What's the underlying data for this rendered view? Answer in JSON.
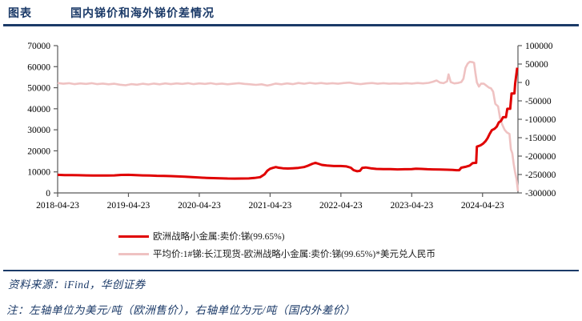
{
  "header": {
    "figure_label": "图表",
    "title": "国内锑价和海外锑价差情况"
  },
  "footer": {
    "source": "资料来源：iFind，华创证券",
    "note": "注：左轴单位为美元/吨（欧洲售价），右轴单位为元/吨（国内外差价）"
  },
  "colors": {
    "accent_navy": "#1b3a68",
    "series_red": "#e00000",
    "series_pink": "#efc2c2",
    "axis_line": "#595959",
    "tick_text": "#000000"
  },
  "chart_data": {
    "type": "line",
    "title": "国内锑价和海外锑价差情况",
    "grid": false,
    "legend_position": "bottom",
    "x_axis": {
      "tick_labels": [
        "2018-04-23",
        "2019-04-23",
        "2020-04-23",
        "2021-04-23",
        "2022-04-23",
        "2023-04-23",
        "2024-04-23"
      ],
      "tick_t": [
        0,
        1,
        2,
        3,
        4,
        5,
        6
      ],
      "t_range": [
        0,
        6.5
      ]
    },
    "left_axis": {
      "unit": "美元/吨",
      "range": [
        0,
        70000
      ],
      "tick_labels": [
        "0",
        "10000",
        "20000",
        "30000",
        "40000",
        "50000",
        "60000",
        "70000"
      ],
      "tick_values": [
        0,
        10000,
        20000,
        30000,
        40000,
        50000,
        60000,
        70000
      ]
    },
    "right_axis": {
      "unit": "元/吨",
      "range": [
        -300000,
        100000
      ],
      "tick_labels": [
        "-300000",
        "-250000",
        "-200000",
        "-150000",
        "-100000",
        "-50000",
        "0",
        "50000",
        "100000"
      ],
      "tick_values": [
        -300000,
        -250000,
        -200000,
        -150000,
        -100000,
        -50000,
        0,
        50000,
        100000
      ]
    },
    "legend": [
      {
        "label": "欧洲战略小金属:卖价:锑(99.65%)"
      },
      {
        "label": "平均价:1#锑:长江现货-欧洲战略小金属:卖价:锑(99.65%)*美元兑人民币"
      }
    ],
    "series": [
      {
        "name": "平均价:1#锑:长江现货-欧洲战略小金属:卖价:锑(99.65%)*美元兑人民币",
        "axis": "right",
        "color": "#efc2c2",
        "width": 2.6,
        "points": [
          [
            0,
            -1500
          ],
          [
            0.08,
            -3500
          ],
          [
            0.16,
            -2000
          ],
          [
            0.24,
            -4500
          ],
          [
            0.32,
            -2500
          ],
          [
            0.4,
            -4000
          ],
          [
            0.48,
            -2000
          ],
          [
            0.56,
            -4500
          ],
          [
            0.64,
            -3000
          ],
          [
            0.72,
            -5000
          ],
          [
            0.8,
            -3500
          ],
          [
            0.88,
            -6000
          ],
          [
            0.96,
            -7500
          ],
          [
            1.04,
            -4500
          ],
          [
            1.12,
            -6000
          ],
          [
            1.2,
            -3500
          ],
          [
            1.28,
            -5500
          ],
          [
            1.36,
            -3000
          ],
          [
            1.44,
            -5000
          ],
          [
            1.52,
            -2500
          ],
          [
            1.6,
            -4500
          ],
          [
            1.68,
            -2500
          ],
          [
            1.76,
            -4000
          ],
          [
            1.84,
            -2000
          ],
          [
            1.92,
            -4500
          ],
          [
            2.0,
            -2500
          ],
          [
            2.08,
            -4000
          ],
          [
            2.16,
            -2000
          ],
          [
            2.24,
            -4500
          ],
          [
            2.32,
            -3000
          ],
          [
            2.4,
            -5000
          ],
          [
            2.48,
            -3500
          ],
          [
            2.56,
            -2000
          ],
          [
            2.64,
            -4000
          ],
          [
            2.72,
            -5000
          ],
          [
            2.8,
            -6500
          ],
          [
            2.88,
            -5000
          ],
          [
            2.96,
            -8500
          ],
          [
            3.02,
            -6000
          ],
          [
            3.08,
            -3000
          ],
          [
            3.16,
            -5000
          ],
          [
            3.24,
            -2500
          ],
          [
            3.32,
            -4500
          ],
          [
            3.4,
            -1500
          ],
          [
            3.48,
            -3500
          ],
          [
            3.56,
            -1000
          ],
          [
            3.64,
            -3000
          ],
          [
            3.72,
            -1500
          ],
          [
            3.8,
            -3500
          ],
          [
            3.88,
            -2000
          ],
          [
            3.96,
            -3500
          ],
          [
            4.04,
            -1500
          ],
          [
            4.12,
            -500
          ],
          [
            4.2,
            -3000
          ],
          [
            4.28,
            -4500
          ],
          [
            4.36,
            -2500
          ],
          [
            4.44,
            -1500
          ],
          [
            4.52,
            -3500
          ],
          [
            4.6,
            -2000
          ],
          [
            4.68,
            -3500
          ],
          [
            4.76,
            -2500
          ],
          [
            4.84,
            -3500
          ],
          [
            4.92,
            -2000
          ],
          [
            5.0,
            -3000
          ],
          [
            5.08,
            -1500
          ],
          [
            5.16,
            -2500
          ],
          [
            5.24,
            -1000
          ],
          [
            5.3,
            2000
          ],
          [
            5.35,
            5500
          ],
          [
            5.4,
            -500
          ],
          [
            5.45,
            -2000
          ],
          [
            5.5,
            3000
          ],
          [
            5.52,
            22000
          ],
          [
            5.55,
            1000
          ],
          [
            5.6,
            -2500
          ],
          [
            5.65,
            -1500
          ],
          [
            5.7,
            1000
          ],
          [
            5.73,
            10000
          ],
          [
            5.76,
            40000
          ],
          [
            5.79,
            51000
          ],
          [
            5.82,
            56000
          ],
          [
            5.86,
            55000
          ],
          [
            5.88,
            53000
          ],
          [
            5.9,
            25000
          ],
          [
            5.92,
            0
          ],
          [
            5.95,
            -11000
          ],
          [
            5.98,
            -3000
          ],
          [
            6.02,
            -3500
          ],
          [
            6.05,
            -8000
          ],
          [
            6.09,
            -14000
          ],
          [
            6.12,
            -16000
          ],
          [
            6.15,
            -25000
          ],
          [
            6.18,
            -58000
          ],
          [
            6.22,
            -65000
          ],
          [
            6.25,
            -100000
          ],
          [
            6.28,
            -115000
          ],
          [
            6.31,
            -128000
          ],
          [
            6.34,
            -135000
          ],
          [
            6.38,
            -140000
          ],
          [
            6.4,
            -182000
          ],
          [
            6.42,
            -192000
          ],
          [
            6.44,
            -222000
          ],
          [
            6.46,
            -245000
          ],
          [
            6.48,
            -262000
          ],
          [
            6.5,
            -295000
          ]
        ]
      },
      {
        "name": "欧洲战略小金属:卖价:锑(99.65%)",
        "axis": "left",
        "color": "#e00000",
        "width": 3,
        "points": [
          [
            0,
            8600
          ],
          [
            0.1,
            8500
          ],
          [
            0.2,
            8450
          ],
          [
            0.3,
            8400
          ],
          [
            0.4,
            8350
          ],
          [
            0.5,
            8300
          ],
          [
            0.6,
            8250
          ],
          [
            0.7,
            8300
          ],
          [
            0.8,
            8350
          ],
          [
            0.9,
            8550
          ],
          [
            1.0,
            8600
          ],
          [
            1.1,
            8450
          ],
          [
            1.2,
            8350
          ],
          [
            1.3,
            8250
          ],
          [
            1.4,
            8150
          ],
          [
            1.5,
            8100
          ],
          [
            1.6,
            8000
          ],
          [
            1.7,
            7850
          ],
          [
            1.8,
            7700
          ],
          [
            1.9,
            7500
          ],
          [
            2.0,
            7300
          ],
          [
            2.1,
            7150
          ],
          [
            2.2,
            7050
          ],
          [
            2.3,
            6950
          ],
          [
            2.4,
            6850
          ],
          [
            2.5,
            6800
          ],
          [
            2.6,
            6850
          ],
          [
            2.7,
            6900
          ],
          [
            2.78,
            7100
          ],
          [
            2.86,
            7500
          ],
          [
            2.92,
            8800
          ],
          [
            2.96,
            10500
          ],
          [
            3.0,
            11500
          ],
          [
            3.04,
            11900
          ],
          [
            3.08,
            12300
          ],
          [
            3.12,
            12000
          ],
          [
            3.18,
            11700
          ],
          [
            3.25,
            11600
          ],
          [
            3.32,
            11700
          ],
          [
            3.4,
            11900
          ],
          [
            3.48,
            12300
          ],
          [
            3.54,
            13000
          ],
          [
            3.6,
            13900
          ],
          [
            3.64,
            14300
          ],
          [
            3.68,
            13900
          ],
          [
            3.73,
            13300
          ],
          [
            3.8,
            13000
          ],
          [
            3.9,
            12800
          ],
          [
            4.0,
            12800
          ],
          [
            4.08,
            12600
          ],
          [
            4.14,
            12000
          ],
          [
            4.18,
            10800
          ],
          [
            4.23,
            10300
          ],
          [
            4.27,
            10500
          ],
          [
            4.3,
            11900
          ],
          [
            4.35,
            12100
          ],
          [
            4.42,
            11700
          ],
          [
            4.5,
            11400
          ],
          [
            4.6,
            11300
          ],
          [
            4.7,
            11350
          ],
          [
            4.8,
            11200
          ],
          [
            4.9,
            11250
          ],
          [
            5.0,
            11300
          ],
          [
            5.06,
            11500
          ],
          [
            5.14,
            11400
          ],
          [
            5.22,
            11250
          ],
          [
            5.3,
            11200
          ],
          [
            5.4,
            11150
          ],
          [
            5.5,
            11050
          ],
          [
            5.58,
            10950
          ],
          [
            5.63,
            10800
          ],
          [
            5.67,
            10800
          ],
          [
            5.7,
            12000
          ],
          [
            5.76,
            12400
          ],
          [
            5.82,
            13000
          ],
          [
            5.86,
            14200
          ],
          [
            5.91,
            14300
          ],
          [
            5.92,
            22000
          ],
          [
            5.97,
            22600
          ],
          [
            6.01,
            23500
          ],
          [
            6.04,
            24500
          ],
          [
            6.07,
            26000
          ],
          [
            6.1,
            28000
          ],
          [
            6.13,
            29800
          ],
          [
            6.17,
            30500
          ],
          [
            6.2,
            31500
          ],
          [
            6.23,
            33500
          ],
          [
            6.26,
            34200
          ],
          [
            6.29,
            36000
          ],
          [
            6.33,
            36000
          ],
          [
            6.35,
            40000
          ],
          [
            6.39,
            40000
          ],
          [
            6.41,
            47300
          ],
          [
            6.45,
            47300
          ],
          [
            6.46,
            52000
          ],
          [
            6.49,
            59500
          ]
        ]
      }
    ]
  }
}
